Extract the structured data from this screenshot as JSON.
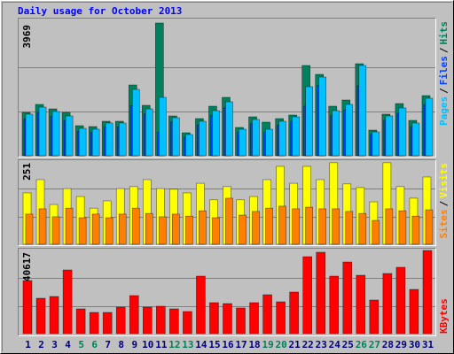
{
  "chart_data": [
    {
      "type": "bar",
      "title": "Daily usage for October 2013",
      "categories": [
        "1",
        "2",
        "3",
        "4",
        "5",
        "6",
        "7",
        "8",
        "9",
        "10",
        "11",
        "12",
        "13",
        "14",
        "15",
        "16",
        "17",
        "18",
        "19",
        "20",
        "21",
        "22",
        "23",
        "24",
        "25",
        "26",
        "27",
        "28",
        "29",
        "30",
        "31"
      ],
      "category_colors": [
        "#000080",
        "#000080",
        "#000080",
        "#000080",
        "#00805C",
        "#00805C",
        "#000080",
        "#000080",
        "#000080",
        "#000080",
        "#000080",
        "#00805C",
        "#00805C",
        "#000080",
        "#000080",
        "#000080",
        "#000080",
        "#000080",
        "#00805C",
        "#00805C",
        "#000080",
        "#000080",
        "#000080",
        "#000080",
        "#000080",
        "#00805C",
        "#00805C",
        "#000080",
        "#000080",
        "#000080",
        "#000080"
      ],
      "legend_separator": "/",
      "series": [
        {
          "name": "Hits",
          "color": "#00805C",
          "values": [
            1297,
            1535,
            1402,
            1297,
            900,
            873,
            1032,
            1032,
            2117,
            1508,
            3969,
            1191,
            688,
            1111,
            1482,
            1746,
            847,
            1164,
            1005,
            1111,
            1217,
            2699,
            2434,
            1482,
            1667,
            2752,
            767,
            1244,
            1561,
            1058,
            1799
          ]
        },
        {
          "name": "Files",
          "color": "#0040FF",
          "values": [
            1100,
            1300,
            1180,
            1060,
            730,
            700,
            870,
            870,
            1500,
            1250,
            700,
            1010,
            560,
            920,
            1200,
            1440,
            700,
            960,
            700,
            920,
            1030,
            1482,
            2100,
            1200,
            1370,
            2090,
            640,
            1060,
            1270,
            870,
            1530
          ]
        },
        {
          "name": "Pages",
          "color": "#00C0FF",
          "values": [
            1244,
            1455,
            1323,
            1191,
            820,
            794,
            979,
            979,
            1984,
            1402,
            1746,
            1138,
            635,
            1032,
            1349,
            1614,
            794,
            1085,
            794,
            1032,
            1164,
            2064,
            2355,
            1349,
            1535,
            2699,
            714,
            1191,
            1429,
            979,
            1720
          ]
        }
      ],
      "ylim": [
        0,
        3969
      ],
      "yticks": [
        3969
      ]
    },
    {
      "type": "bar",
      "legend_separator": "/",
      "series": [
        {
          "name": "Visits",
          "color": "#FFFF00",
          "values": [
            155,
            195,
            120,
            168,
            144,
            109,
            131,
            168,
            174,
            195,
            168,
            166,
            155,
            184,
            134,
            174,
            134,
            144,
            195,
            235,
            184,
            235,
            195,
            246,
            182,
            171,
            128,
            246,
            174,
            139,
            203
          ]
        },
        {
          "name": "Sites",
          "color": "#FF8000",
          "values": [
            91,
            107,
            83,
            109,
            80,
            91,
            80,
            91,
            109,
            93,
            83,
            91,
            85,
            101,
            80,
            139,
            88,
            99,
            109,
            115,
            107,
            112,
            107,
            107,
            99,
            93,
            72,
            107,
            101,
            85,
            104
          ]
        }
      ],
      "ylim": [
        0,
        251
      ],
      "yticks": [
        251
      ]
    },
    {
      "type": "bar",
      "series": [
        {
          "name": "KBytes",
          "color": "#FF0000",
          "values": [
            25920,
            17280,
            18144,
            31104,
            12096,
            10368,
            10368,
            12960,
            18576,
            12960,
            13392,
            12096,
            10800,
            28080,
            15120,
            14688,
            12528,
            15120,
            19008,
            15552,
            20304,
            37584,
            39744,
            28080,
            34992,
            28512,
            16416,
            29376,
            32400,
            21600,
            40617
          ]
        }
      ],
      "ylim": [
        0,
        40617
      ],
      "yticks": [
        40617
      ]
    }
  ]
}
